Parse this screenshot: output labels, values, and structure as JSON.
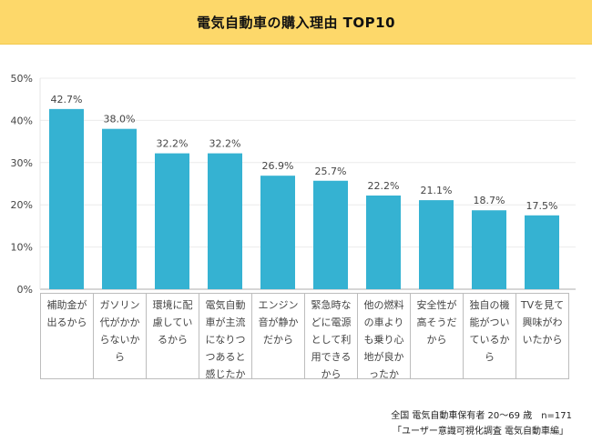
{
  "chart_data": {
    "type": "bar",
    "title": "電気自動車の購入理由 TOP10",
    "xlabel": "",
    "ylabel": "",
    "ylim": [
      0,
      50
    ],
    "yticks": [
      0,
      10,
      20,
      30,
      40,
      50
    ],
    "ytick_labels": [
      "0%",
      "10%",
      "20%",
      "30%",
      "40%",
      "50%"
    ],
    "grid": true,
    "categories": [
      "補助金が出るから",
      "ガソリン代がかからないから",
      "環境に配慮しているから",
      "電気自動車が主流になりつつあると感じたか",
      "エンジン音が静かだから",
      "緊急時などに電源として利用できるから",
      "他の燃料の車よりも乗り心地が良かったか",
      "安全性が高そうだから",
      "独自の機能がついているから",
      "TVを見て興味がわいたから"
    ],
    "values": [
      42.7,
      38.0,
      32.2,
      32.2,
      26.9,
      25.7,
      22.2,
      21.1,
      18.7,
      17.5
    ],
    "data_labels": [
      "42.7%",
      "38.0%",
      "32.2%",
      "32.2%",
      "26.9%",
      "25.7%",
      "22.2%",
      "21.1%",
      "18.7%",
      "17.5%"
    ],
    "bar_color": "#35b2d2",
    "legend": "none"
  },
  "header": {
    "title": "電気自動車の購入理由 TOP10",
    "background": "#fdd86a"
  },
  "footnotes": {
    "line1": "全国 電気自動車保有者 20〜69 歳　n=171",
    "line2": "「ユーザー意識可視化調査 電気自動車編」"
  }
}
